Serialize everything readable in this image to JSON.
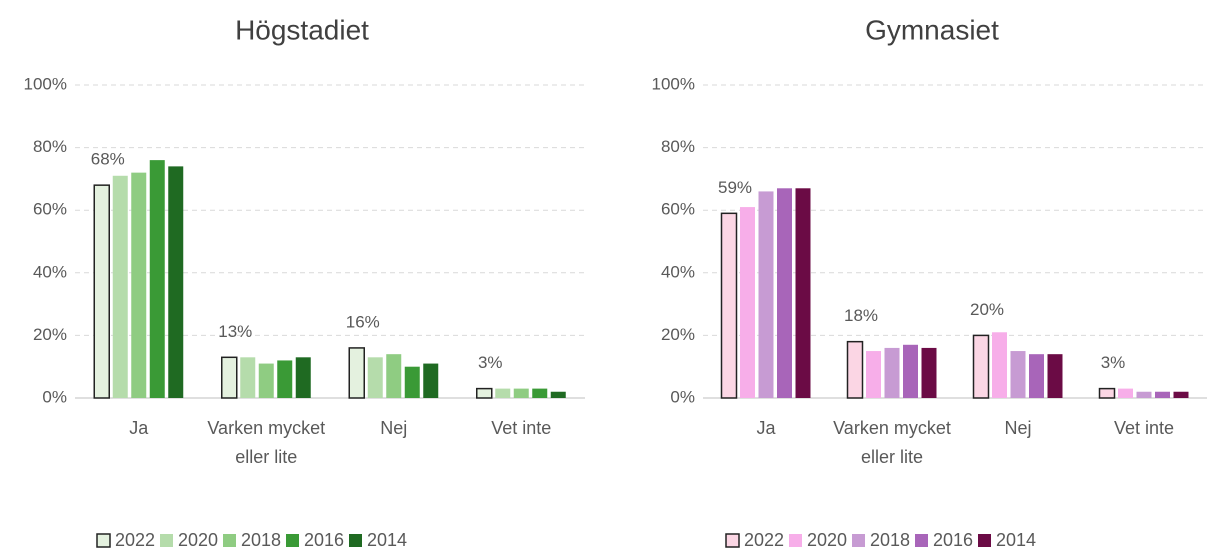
{
  "chart_data": [
    {
      "type": "bar",
      "title": "Högstadiet",
      "categories": [
        "Ja",
        "Varken mycket eller lite",
        "Nej",
        "Vet inte"
      ],
      "series": [
        {
          "name": "2022",
          "color": "#e4f1df",
          "edgecolor": "#222222",
          "values": [
            68,
            13,
            16,
            3
          ],
          "value_labels": [
            "68%",
            "13%",
            "16%",
            "3%"
          ]
        },
        {
          "name": "2020",
          "color": "#b5dcab",
          "values": [
            71,
            13,
            13,
            3
          ]
        },
        {
          "name": "2018",
          "color": "#8fcc82",
          "values": [
            72,
            11,
            14,
            3
          ]
        },
        {
          "name": "2016",
          "color": "#3a9a36",
          "values": [
            76,
            12,
            10,
            3
          ]
        },
        {
          "name": "2014",
          "color": "#1f6a22",
          "values": [
            74,
            13,
            11,
            2
          ]
        }
      ],
      "ylim": [
        0,
        100
      ],
      "yticks": [
        {
          "value": 0,
          "label": "0%"
        },
        {
          "value": 20,
          "label": "20%"
        },
        {
          "value": 40,
          "label": "40%"
        },
        {
          "value": 60,
          "label": "60%"
        },
        {
          "value": 80,
          "label": "80%"
        },
        {
          "value": 100,
          "label": "100%"
        }
      ],
      "grid": true
    },
    {
      "type": "bar",
      "title": "Gymnasiet",
      "categories": [
        "Ja",
        "Varken mycket eller lite",
        "Nej",
        "Vet inte"
      ],
      "series": [
        {
          "name": "2022",
          "color": "#fbd6e4",
          "edgecolor": "#222222",
          "values": [
            59,
            18,
            20,
            3
          ],
          "value_labels": [
            "59%",
            "18%",
            "20%",
            "3%"
          ]
        },
        {
          "name": "2020",
          "color": "#f7aee9",
          "values": [
            61,
            15,
            21,
            3
          ]
        },
        {
          "name": "2018",
          "color": "#c79bd3",
          "values": [
            66,
            16,
            15,
            2
          ]
        },
        {
          "name": "2016",
          "color": "#a865b9",
          "values": [
            67,
            17,
            14,
            2
          ]
        },
        {
          "name": "2014",
          "color": "#6b0b45",
          "values": [
            67,
            16,
            14,
            2
          ]
        }
      ],
      "ylim": [
        0,
        100
      ],
      "yticks": [
        {
          "value": 0,
          "label": "0%"
        },
        {
          "value": 20,
          "label": "20%"
        },
        {
          "value": 40,
          "label": "40%"
        },
        {
          "value": 60,
          "label": "60%"
        },
        {
          "value": 80,
          "label": "80%"
        },
        {
          "value": 100,
          "label": "100%"
        }
      ],
      "grid": true
    }
  ]
}
